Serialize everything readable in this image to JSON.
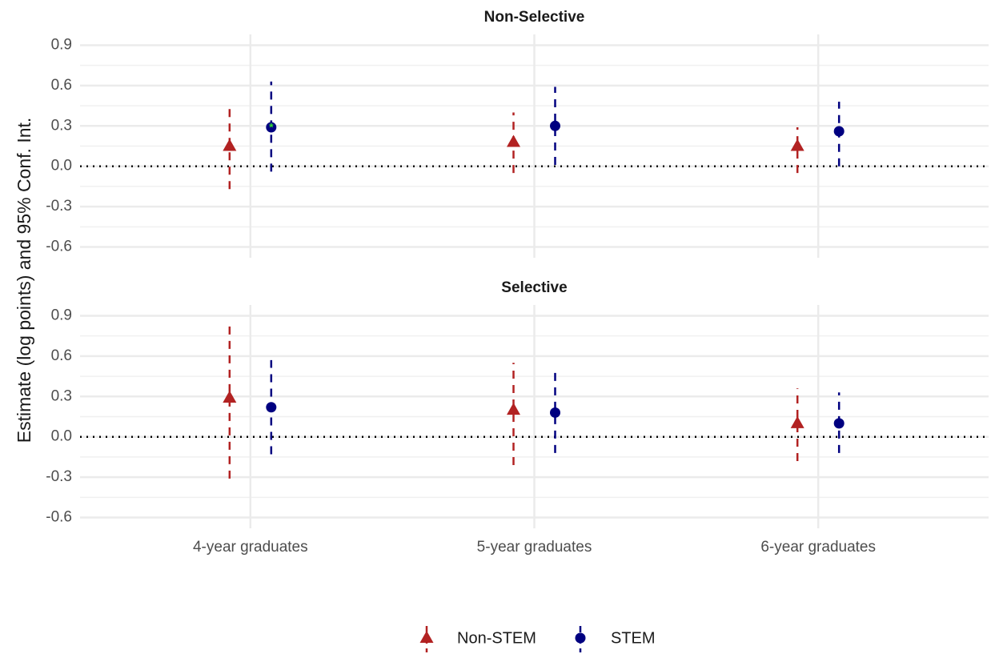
{
  "chart_data": {
    "type": "pointrange",
    "ylabel": "Estimate (log points) and 95% Conf. Int.",
    "categories": [
      "4-year graduates",
      "5-year graduates",
      "6-year graduates"
    ],
    "series": [
      {
        "name": "Non-STEM",
        "color": "#b22222",
        "marker": "triangle"
      },
      {
        "name": "STEM",
        "color": "#000080",
        "marker": "circle"
      }
    ],
    "ylim": [
      -0.68,
      0.98
    ],
    "yticks": [
      -0.6,
      -0.3,
      0.0,
      0.3,
      0.6,
      0.9
    ],
    "grid": true,
    "highlight_color": "#33dd33",
    "panels": [
      {
        "title": "Non-Selective",
        "series": [
          {
            "values": [
              0.15,
              0.18,
              0.15
            ],
            "lower": [
              -0.17,
              -0.05,
              -0.05
            ],
            "upper": [
              0.44,
              0.4,
              0.29
            ],
            "starred": [
              false,
              false,
              false
            ]
          },
          {
            "values": [
              0.29,
              0.3,
              0.26
            ],
            "lower": [
              -0.04,
              0.01,
              0.0
            ],
            "upper": [
              0.63,
              0.59,
              0.48
            ],
            "starred": [
              true,
              false,
              false
            ]
          }
        ]
      },
      {
        "title": "Selective",
        "series": [
          {
            "values": [
              0.29,
              0.2,
              0.1
            ],
            "lower": [
              -0.31,
              -0.21,
              -0.18
            ],
            "upper": [
              0.85,
              0.55,
              0.36
            ],
            "starred": [
              false,
              false,
              false
            ]
          },
          {
            "values": [
              0.22,
              0.18,
              0.1
            ],
            "lower": [
              -0.13,
              -0.12,
              -0.12
            ],
            "upper": [
              0.57,
              0.49,
              0.33
            ],
            "starred": [
              false,
              false,
              false
            ]
          }
        ]
      }
    ]
  }
}
